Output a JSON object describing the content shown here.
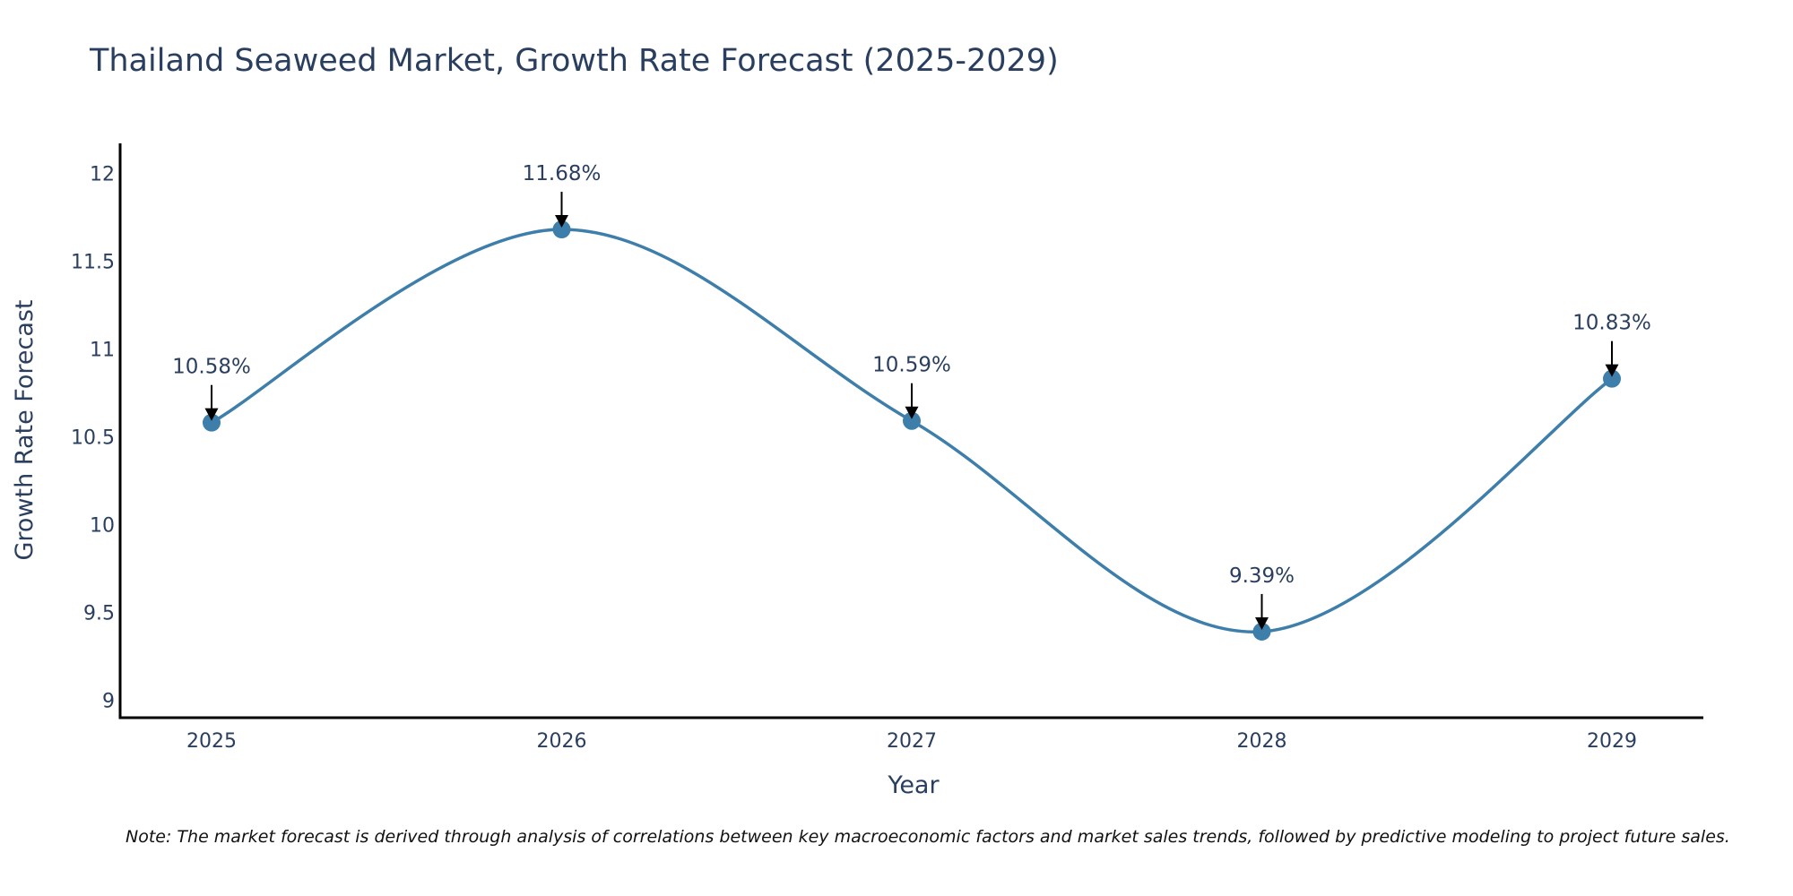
{
  "chart_data": {
    "type": "line",
    "title": "Thailand Seaweed Market, Growth Rate Forecast (2025-2029)",
    "xlabel": "Year",
    "ylabel": "Growth Rate Forecast",
    "categories": [
      "2025",
      "2026",
      "2027",
      "2028",
      "2029"
    ],
    "series": [
      {
        "name": "Growth Rate Forecast",
        "values": [
          10.58,
          11.68,
          10.59,
          9.39,
          10.83
        ],
        "labels": [
          "10.58%",
          "11.68%",
          "10.59%",
          "9.39%",
          "10.83%"
        ]
      }
    ],
    "yticks": [
      "9",
      "9.5",
      "10",
      "10.5",
      "11",
      "11.5",
      "12"
    ],
    "ylim": [
      8.9,
      12.17
    ],
    "grid": false,
    "line_color": "#3d7eaa",
    "marker_color": "#3d7eaa",
    "arrow_color": "#000000",
    "axis_color": "#000000",
    "text_color": "#2a3f5f",
    "note": "Note: The market forecast is derived through analysis of correlations between key macroeconomic factors and market sales trends, followed by predictive modeling to project future sales."
  }
}
